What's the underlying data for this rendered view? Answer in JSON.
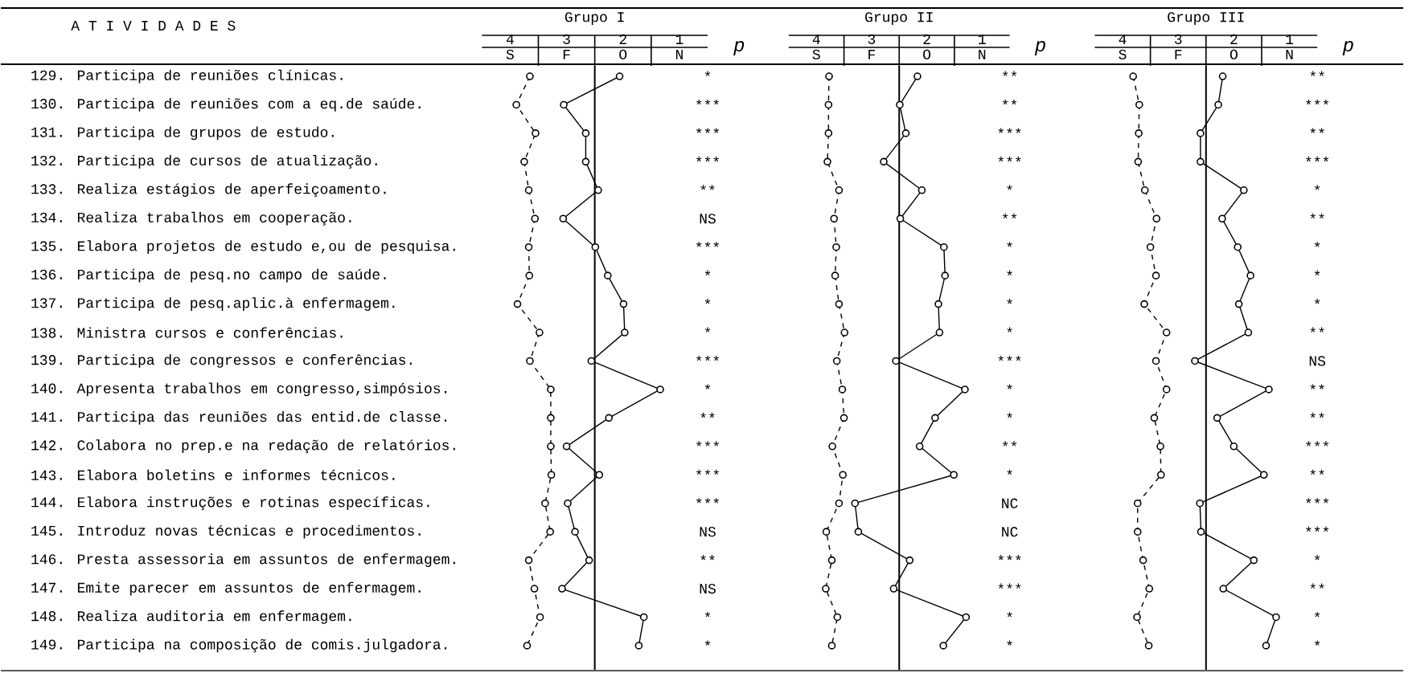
{
  "chart_data": [
    {
      "type": "line",
      "title": "Grupo I",
      "ylabel": "A T I V I D A D E S",
      "orientation": "horizontal",
      "marker": "circle",
      "categories": [
        "129. Participa de reuniões clínicas.",
        "130. Participa de reuniões com a eq.de saúde.",
        "131. Participa de grupos de estudo.",
        "132. Participa de cursos de atualização.",
        "133. Realiza estágios de aperfeiçoamento.",
        "134. Realiza trabalhos em cooperação.",
        "135. Elabora projetos de estudo e,ou de pesquisa.",
        "136. Participa de pesq.no campo de saúde.",
        "137. Participa de pesq.aplic.à enfermagem.",
        "138. Ministra cursos e conferências.",
        "139. Participa de congressos e conferências.",
        "140. Apresenta trabalhos em congresso,simpósios.",
        "141. Participa das reuniões das entid.de classe.",
        "142. Colabora no prep.e na redação de relatórios.",
        "143. Elabora boletins e informes técnicos.",
        "144. Elabora instruções e rotinas específicas.",
        "145. Introduz novas técnicas e procedimentos.",
        "146. Presta assessoria em assuntos de enfermagem.",
        "147. Emite parecer em assuntos de enfermagem.",
        "148. Realiza auditoria em enfermagem.",
        "149. Participa na composição de comis.julgadora."
      ],
      "xlim": [
        4.5,
        0.5
      ],
      "xticks": [
        4,
        3,
        2,
        1
      ],
      "ref_lines": [
        {
          "axis": "x",
          "value": 2.5,
          "color": "#000000"
        }
      ],
      "series": [
        {
          "color": "#000000",
          "line_style": "dashed",
          "values": [
            3.65,
            3.89,
            3.55,
            3.75,
            3.67,
            3.56,
            3.67,
            3.66,
            3.87,
            3.48,
            3.65,
            3.28,
            3.28,
            3.28,
            3.27,
            3.38,
            3.29,
            3.67,
            3.57,
            3.47,
            3.7
          ]
        },
        {
          "color": "#000000",
          "line_style": "solid",
          "values": [
            2.06,
            3.05,
            2.66,
            2.66,
            2.44,
            3.06,
            2.49,
            2.27,
            1.99,
            1.97,
            2.56,
            1.34,
            2.25,
            3.0,
            2.42,
            2.98,
            2.85,
            2.6,
            3.08,
            1.63,
            1.72
          ]
        }
      ],
      "annotations": [
        "p",
        "*",
        "***",
        "***",
        "***",
        "**",
        "NS",
        "***",
        "*",
        "*",
        "*",
        "***",
        "*",
        "**",
        "***",
        "***",
        "***",
        "NS",
        "**",
        "NS",
        "*",
        "*",
        "S",
        "F",
        "O",
        "N"
      ]
    },
    {
      "type": "line",
      "title": "Grupo II",
      "orientation": "horizontal",
      "marker": "circle",
      "tick_labels": "x",
      "categories": [
        null,
        null,
        null,
        null,
        null,
        null,
        null,
        null,
        null,
        null,
        null,
        null,
        null,
        null,
        null,
        null,
        null,
        null,
        null,
        null,
        null
      ],
      "xlim": [
        4.5,
        0.5
      ],
      "xticks": [
        4,
        3,
        2,
        1
      ],
      "ref_lines": [
        {
          "axis": "x",
          "value": 2.5,
          "color": "#000000"
        }
      ],
      "series": [
        {
          "color": "#000000",
          "line_style": "dashed",
          "values": [
            3.77,
            3.78,
            3.78,
            3.8,
            3.59,
            3.68,
            3.64,
            3.66,
            3.59,
            3.49,
            3.63,
            3.53,
            3.5,
            3.71,
            3.52,
            3.59,
            3.82,
            3.72,
            3.83,
            3.62,
            3.72
          ]
        },
        {
          "color": "#000000",
          "line_style": "solid",
          "values": [
            2.17,
            2.49,
            2.38,
            2.78,
            2.09,
            2.48,
            1.69,
            1.67,
            1.79,
            1.77,
            2.56,
            1.31,
            1.85,
            2.13,
            1.51,
            3.3,
            3.24,
            2.31,
            2.6,
            1.29,
            1.7
          ]
        }
      ],
      "annotations": [
        "p",
        "**",
        "**",
        "***",
        "***",
        "*",
        "**",
        "*",
        "*",
        "*",
        "*",
        "***",
        "*",
        "*",
        "**",
        "*",
        "NC",
        "NC",
        "***",
        "***",
        "*",
        "*",
        "S",
        "F",
        "O",
        "N"
      ]
    },
    {
      "type": "line",
      "title": "Grupo III",
      "orientation": "horizontal",
      "marker": "circle",
      "tick_labels": "x",
      "categories": [
        null,
        null,
        null,
        null,
        null,
        null,
        null,
        null,
        null,
        null,
        null,
        null,
        null,
        null,
        null,
        null,
        null,
        null,
        null,
        null,
        null
      ],
      "xlim": [
        4.5,
        0.5
      ],
      "xticks": [
        4,
        3,
        2,
        1
      ],
      "ref_lines": [
        {
          "axis": "x",
          "value": 2.5,
          "color": "#000000"
        }
      ],
      "series": [
        {
          "color": "#000000",
          "line_style": "dashed",
          "values": [
            3.81,
            3.7,
            3.71,
            3.72,
            3.6,
            3.39,
            3.5,
            3.4,
            3.61,
            3.21,
            3.4,
            3.21,
            3.43,
            3.32,
            3.31,
            3.73,
            3.73,
            3.63,
            3.52,
            3.74,
            3.53
          ]
        },
        {
          "color": "#000000",
          "line_style": "solid",
          "values": [
            2.2,
            2.28,
            2.6,
            2.6,
            1.82,
            2.21,
            1.93,
            1.7,
            1.91,
            1.74,
            2.7,
            1.37,
            2.3,
            2.0,
            1.46,
            2.61,
            2.59,
            1.64,
            2.19,
            1.24,
            1.42
          ]
        }
      ],
      "annotations": [
        "p",
        "**",
        "***",
        "**",
        "***",
        "*",
        "**",
        "*",
        "*",
        "*",
        "**",
        "NS",
        "**",
        "**",
        "***",
        "**",
        "***",
        "***",
        "*",
        "**",
        "*",
        "*",
        "S",
        "F",
        "O",
        "N"
      ]
    }
  ]
}
